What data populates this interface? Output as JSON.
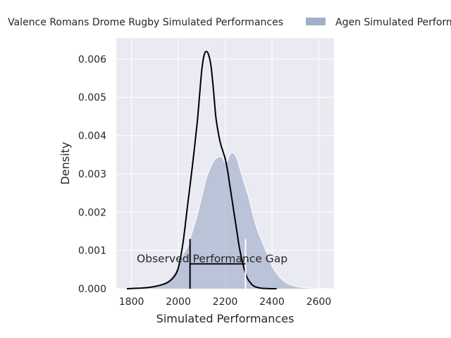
{
  "chart_data": {
    "type": "density",
    "xlabel": "Simulated Performances",
    "ylabel": "Density",
    "xlim": [
      1735,
      2665
    ],
    "ylim": [
      0,
      0.00655
    ],
    "x_ticks": [
      1800,
      2000,
      2200,
      2400,
      2600
    ],
    "y_ticks": [
      0.0,
      0.001,
      0.002,
      0.003,
      0.004,
      0.005,
      0.006
    ],
    "y_tick_labels": [
      "0.000",
      "0.001",
      "0.002",
      "0.003",
      "0.004",
      "0.005",
      "0.006"
    ],
    "grid": true,
    "legend_position": "top, outside plot",
    "series": [
      {
        "name": "Valence Romans Drome Rugby Simulated Performances",
        "style": "line",
        "color": "#000000",
        "x": [
          1780,
          1850,
          1900,
          1950,
          1980,
          2000,
          2020,
          2040,
          2060,
          2080,
          2090,
          2100,
          2110,
          2120,
          2130,
          2140,
          2150,
          2160,
          2170,
          2180,
          2190,
          2200,
          2210,
          2220,
          2230,
          2240,
          2250,
          2260,
          2270,
          2280,
          2290,
          2300,
          2320,
          2340,
          2360,
          2380,
          2400,
          2420
        ],
        "y": [
          0.0,
          2e-05,
          6e-05,
          0.00015,
          0.0003,
          0.00055,
          0.0012,
          0.0022,
          0.0032,
          0.0043,
          0.005,
          0.0057,
          0.0061,
          0.0062,
          0.0061,
          0.0058,
          0.0052,
          0.0045,
          0.0041,
          0.0038,
          0.0036,
          0.0034,
          0.0031,
          0.0027,
          0.0023,
          0.0019,
          0.0015,
          0.0011,
          0.0008,
          0.00055,
          0.00035,
          0.00022,
          8e-05,
          3e-05,
          1e-05,
          5e-06,
          0.0,
          0.0
        ]
      },
      {
        "name": "Agen Simulated Performances",
        "style": "filled",
        "color": "#a2aecb",
        "x": [
          1780,
          1850,
          1900,
          1950,
          1980,
          2000,
          2020,
          2040,
          2060,
          2080,
          2100,
          2120,
          2140,
          2160,
          2180,
          2190,
          2200,
          2210,
          2220,
          2230,
          2240,
          2250,
          2260,
          2270,
          2280,
          2300,
          2320,
          2340,
          2360,
          2380,
          2400,
          2420,
          2450,
          2480,
          2520,
          2560,
          2600,
          2640
        ],
        "y": [
          0.0,
          3e-05,
          8e-05,
          0.0002,
          0.0004,
          0.0006,
          0.0009,
          0.0011,
          0.0015,
          0.0019,
          0.0024,
          0.0029,
          0.0032,
          0.0034,
          0.00345,
          0.0034,
          0.0033,
          0.00335,
          0.0035,
          0.00355,
          0.00352,
          0.0034,
          0.0032,
          0.003,
          0.0028,
          0.0024,
          0.0019,
          0.0015,
          0.0012,
          0.0009,
          0.0006,
          0.0004,
          0.0002,
          0.0001,
          4e-05,
          2e-05,
          1e-05,
          0.0
        ]
      }
    ],
    "annotations": [
      {
        "text": "Observed Performance Gap",
        "x_start": 2050,
        "x_end": 2287,
        "y": 0.00065,
        "tick_height": 0.00065
      }
    ]
  }
}
